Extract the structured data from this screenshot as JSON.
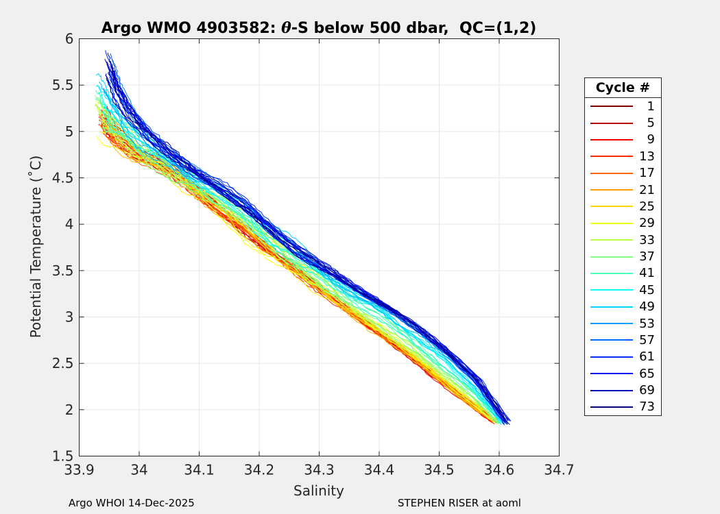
{
  "figure": {
    "title": {
      "prefix": "Argo WMO 4903582: ",
      "theta": "θ",
      "suffix": "-S below 500 dbar,  QC=(1,2)"
    },
    "footer_left": "Argo WHOI 14-Dec-2025",
    "footer_right": "STEPHEN RISER at aoml",
    "colors": {
      "figure_background": "#f0f0f0",
      "axes_background": "#ffffff",
      "grid": "#e6e6e6",
      "frame": "#262626",
      "tick_text": "#262626",
      "legend_border": "#262626"
    }
  },
  "chart_data": {
    "type": "line",
    "title": "Argo WMO 4903582: θ-S below 500 dbar,  QC=(1,2)",
    "xlabel": "Salinity",
    "ylabel": "Potential Temperature (˚C)",
    "xlim": [
      33.9,
      34.7
    ],
    "ylim": [
      1.5,
      6
    ],
    "xticks": [
      33.9,
      34,
      34.1,
      34.2,
      34.3,
      34.4,
      34.5,
      34.6,
      34.7
    ],
    "xtick_labels": [
      "33.9",
      "34",
      "34.1",
      "34.2",
      "34.3",
      "34.4",
      "34.5",
      "34.6",
      "34.7"
    ],
    "yticks": [
      1.5,
      2,
      2.5,
      3,
      3.5,
      4,
      4.5,
      5,
      5.5,
      6
    ],
    "ytick_labels": [
      "1.5",
      "2",
      "2.5",
      "3",
      "3.5",
      "4",
      "4.5",
      "5",
      "5.5",
      "6"
    ],
    "grid": true,
    "legend": {
      "title": "Cycle #",
      "position": "right-outside",
      "entries": [
        1,
        5,
        9,
        13,
        17,
        21,
        25,
        29,
        33,
        37,
        41,
        45,
        49,
        53,
        57,
        61,
        65,
        69,
        73
      ]
    },
    "cycles_plotted": 73,
    "colormap": "jet reversed (cycle 1 = dark red #800000, cycle 73 = navy #000080)",
    "series_envelope": {
      "description": "One theta-S profile per cycle below 500 dbar. Early cycles (red) follow early_path_cycle1; late cycles (blue) follow late_path_cycle73; intermediate cycles interpolate with wiggle. All converge near S=34.60, T=1.86.",
      "early_path_cycle1": [
        [
          33.94,
          5.12
        ],
        [
          33.952,
          4.98
        ],
        [
          33.972,
          4.86
        ],
        [
          34.0,
          4.72
        ],
        [
          34.04,
          4.6
        ],
        [
          34.08,
          4.44
        ],
        [
          34.12,
          4.21
        ],
        [
          34.165,
          3.98
        ],
        [
          34.21,
          3.75
        ],
        [
          34.255,
          3.52
        ],
        [
          34.3,
          3.3
        ],
        [
          34.35,
          3.06
        ],
        [
          34.4,
          2.83
        ],
        [
          34.45,
          2.58
        ],
        [
          34.5,
          2.32
        ],
        [
          34.548,
          2.08
        ],
        [
          34.592,
          1.87
        ]
      ],
      "late_path_cycle73": [
        [
          33.95,
          5.78
        ],
        [
          33.962,
          5.54
        ],
        [
          33.982,
          5.28
        ],
        [
          34.012,
          5.03
        ],
        [
          34.05,
          4.81
        ],
        [
          34.09,
          4.6
        ],
        [
          34.132,
          4.43
        ],
        [
          34.178,
          4.21
        ],
        [
          34.225,
          3.94
        ],
        [
          34.27,
          3.71
        ],
        [
          34.316,
          3.51
        ],
        [
          34.364,
          3.31
        ],
        [
          34.414,
          3.11
        ],
        [
          34.464,
          2.89
        ],
        [
          34.514,
          2.63
        ],
        [
          34.566,
          2.31
        ],
        [
          34.614,
          1.86
        ]
      ]
    }
  }
}
